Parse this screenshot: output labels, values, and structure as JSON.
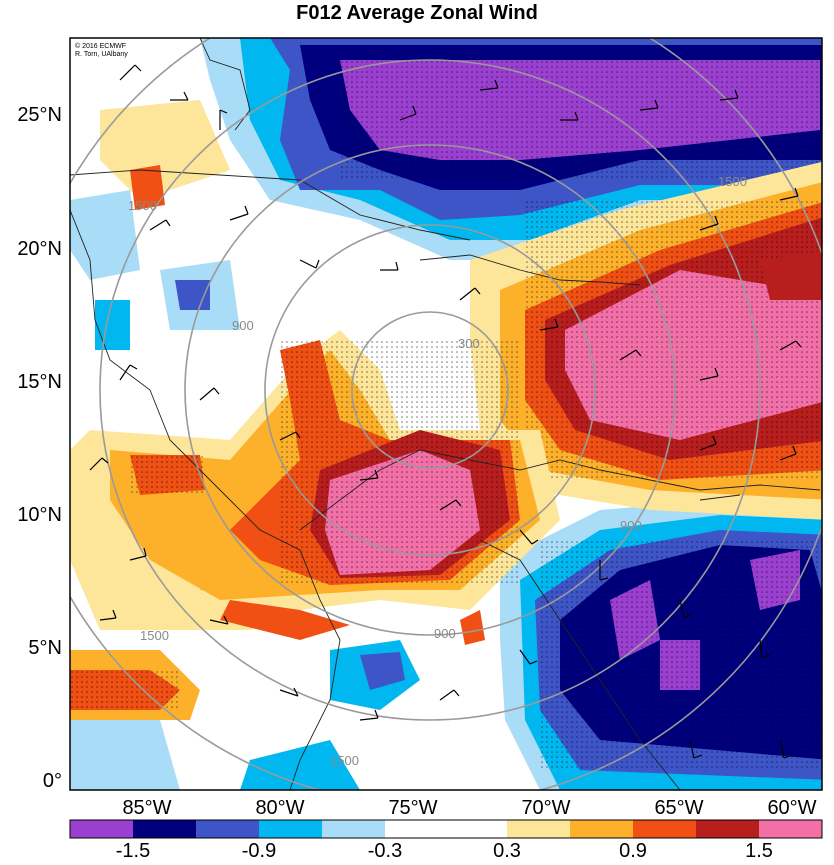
{
  "title": "F012 Average Zonal Wind",
  "credit": {
    "line1": "© 2016 ECMWF",
    "line2": "R. Torn, UAlbany"
  },
  "latitude_ticks": [
    "25°N",
    "20°N",
    "15°N",
    "10°N",
    "5°N",
    "0°"
  ],
  "longitude_ticks": [
    "85°W",
    "80°W",
    "75°W",
    "70°W",
    "65°W",
    "60°W"
  ],
  "colorbar": {
    "labels": [
      "-1.5",
      "-0.9",
      "-0.3",
      "0.3",
      "0.9",
      "1.5"
    ],
    "colors": [
      "#9b3fd0",
      "#00007f",
      "#3e55c8",
      "#00b7ef",
      "#a9dcf6",
      "#ffffff",
      "#fde59a",
      "#fdb12b",
      "#f05014",
      "#b81e1e",
      "#f36fa8"
    ]
  },
  "contour_labels": [
    "300",
    "600",
    "900",
    "1500"
  ],
  "colors": {
    "range_rings": "#9a9a9a",
    "barbs": "#000000",
    "coast": "#222222",
    "frame": "#000000"
  }
}
